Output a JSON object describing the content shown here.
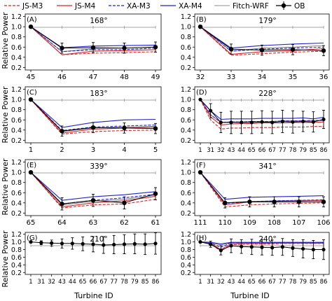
{
  "legend": {
    "entries": [
      {
        "label": "JS-M3",
        "color": "#d62728",
        "dash": "dashed",
        "marker": "none"
      },
      {
        "label": "JS-M4",
        "color": "#d62728",
        "dash": "solid",
        "marker": "none"
      },
      {
        "label": "XA-M3",
        "color": "#2222cc",
        "dash": "dashed",
        "marker": "none"
      },
      {
        "label": "XA-M4",
        "color": "#2222cc",
        "dash": "solid",
        "marker": "none"
      },
      {
        "label": "Fitch-WRF",
        "color": "#666666",
        "dash": "solid",
        "marker": "none"
      },
      {
        "label": "OB",
        "color": "#000000",
        "dash": "solid",
        "marker": "circle"
      }
    ]
  },
  "shared": {
    "ylabel": "Relative Power",
    "xlabel": "Turbine ID",
    "yticks": [
      "0.2",
      "0.4",
      "0.6",
      "0.8",
      "1.0",
      "1.2"
    ]
  },
  "chart_data": [
    {
      "type": "line",
      "letter": "(A)",
      "direction": "168°",
      "ylim": [
        0.15,
        1.25
      ],
      "categories": [
        "45",
        "46",
        "47",
        "48",
        "49"
      ],
      "series": [
        {
          "name": "JS-M3",
          "values": [
            1.0,
            0.45,
            0.48,
            0.49,
            0.51
          ]
        },
        {
          "name": "JS-M4",
          "values": [
            1.0,
            0.45,
            0.52,
            0.53,
            0.55
          ]
        },
        {
          "name": "XA-M3",
          "values": [
            1.0,
            0.51,
            0.55,
            0.55,
            0.58
          ]
        },
        {
          "name": "XA-M4",
          "values": [
            1.0,
            0.59,
            0.62,
            0.63,
            0.64
          ]
        },
        {
          "name": "Fitch-WRF",
          "values": [
            1.0,
            0.51,
            0.57,
            0.58,
            0.6
          ]
        },
        {
          "name": "OB",
          "values": [
            1.0,
            0.58,
            0.59,
            0.58,
            0.6
          ],
          "err": [
            0.0,
            0.1,
            0.1,
            0.1,
            0.1
          ]
        }
      ]
    },
    {
      "type": "line",
      "letter": "(B)",
      "direction": "179°",
      "ylim": [
        0.15,
        1.25
      ],
      "categories": [
        "32",
        "33",
        "34",
        "35",
        "36"
      ],
      "series": [
        {
          "name": "JS-M3",
          "values": [
            1.0,
            0.44,
            0.47,
            0.5,
            0.52
          ]
        },
        {
          "name": "JS-M4",
          "values": [
            1.0,
            0.46,
            0.51,
            0.53,
            0.57
          ]
        },
        {
          "name": "XA-M3",
          "values": [
            1.0,
            0.52,
            0.56,
            0.58,
            0.6
          ]
        },
        {
          "name": "XA-M4",
          "values": [
            1.0,
            0.58,
            0.63,
            0.66,
            0.68
          ]
        },
        {
          "name": "Fitch-WRF",
          "values": [
            1.0,
            0.52,
            0.58,
            0.6,
            0.63
          ]
        },
        {
          "name": "OB",
          "values": [
            1.0,
            0.56,
            0.54,
            0.55,
            0.53
          ],
          "err": [
            0.0,
            0.1,
            0.1,
            0.1,
            0.1
          ]
        }
      ]
    },
    {
      "type": "line",
      "letter": "(C)",
      "direction": "183°",
      "ylim": [
        0.15,
        1.25
      ],
      "categories": [
        "1",
        "2",
        "3",
        "4",
        "5"
      ],
      "series": [
        {
          "name": "JS-M3",
          "values": [
            1.0,
            0.32,
            0.37,
            0.39,
            0.4
          ]
        },
        {
          "name": "JS-M4",
          "values": [
            1.0,
            0.34,
            0.42,
            0.44,
            0.46
          ]
        },
        {
          "name": "XA-M3",
          "values": [
            1.0,
            0.39,
            0.46,
            0.48,
            0.5
          ]
        },
        {
          "name": "XA-M4",
          "values": [
            1.0,
            0.45,
            0.55,
            0.6,
            0.61
          ]
        },
        {
          "name": "Fitch-WRF",
          "values": [
            1.0,
            0.37,
            0.44,
            0.46,
            0.47
          ]
        },
        {
          "name": "OB",
          "values": [
            1.0,
            0.38,
            0.45,
            0.44,
            0.43
          ],
          "err": [
            0.0,
            0.1,
            0.1,
            0.1,
            0.1
          ]
        }
      ]
    },
    {
      "type": "line",
      "letter": "(D)",
      "direction": "228°",
      "ylim": [
        0.15,
        1.25
      ],
      "categories": [
        "1",
        "31",
        "32",
        "43",
        "44",
        "65",
        "66",
        "67",
        "77",
        "78",
        "79",
        "85",
        "86"
      ],
      "series": [
        {
          "name": "JS-M3",
          "values": [
            1.0,
            0.6,
            0.42,
            0.44,
            0.44,
            0.45,
            0.45,
            0.45,
            0.46,
            0.46,
            0.46,
            0.47,
            0.47
          ]
        },
        {
          "name": "JS-M4",
          "values": [
            1.0,
            0.66,
            0.5,
            0.52,
            0.53,
            0.53,
            0.54,
            0.54,
            0.54,
            0.55,
            0.55,
            0.55,
            0.56
          ]
        },
        {
          "name": "XA-M3",
          "values": [
            1.0,
            0.7,
            0.55,
            0.56,
            0.56,
            0.57,
            0.57,
            0.57,
            0.58,
            0.58,
            0.58,
            0.59,
            0.59
          ]
        },
        {
          "name": "XA-M4",
          "values": [
            1.0,
            0.78,
            0.61,
            0.62,
            0.62,
            0.62,
            0.63,
            0.63,
            0.63,
            0.63,
            0.64,
            0.62,
            0.65
          ]
        },
        {
          "name": "Fitch-WRF",
          "values": [
            1.0,
            0.7,
            0.55,
            0.56,
            0.56,
            0.57,
            0.57,
            0.57,
            0.58,
            0.58,
            0.58,
            0.58,
            0.59
          ]
        },
        {
          "name": "OB",
          "values": [
            1.0,
            0.78,
            0.55,
            0.55,
            0.55,
            0.55,
            0.56,
            0.55,
            0.57,
            0.56,
            0.57,
            0.56,
            0.61
          ],
          "err": [
            0.0,
            0.14,
            0.2,
            0.22,
            0.22,
            0.22,
            0.22,
            0.22,
            0.22,
            0.22,
            0.2,
            0.2,
            0.18
          ]
        }
      ]
    },
    {
      "type": "line",
      "letter": "(E)",
      "direction": "339°",
      "ylim": [
        0.15,
        1.25
      ],
      "categories": [
        "65",
        "64",
        "63",
        "62",
        "61"
      ],
      "series": [
        {
          "name": "JS-M3",
          "values": [
            1.0,
            0.3,
            0.36,
            0.38,
            0.47
          ]
        },
        {
          "name": "JS-M4",
          "values": [
            1.0,
            0.32,
            0.4,
            0.44,
            0.53
          ]
        },
        {
          "name": "XA-M3",
          "values": [
            1.0,
            0.38,
            0.45,
            0.5,
            0.57
          ]
        },
        {
          "name": "XA-M4",
          "values": [
            1.0,
            0.45,
            0.52,
            0.56,
            0.62
          ]
        },
        {
          "name": "Fitch-WRF",
          "values": [
            1.0,
            0.36,
            0.43,
            0.47,
            0.55
          ]
        },
        {
          "name": "OB",
          "values": [
            1.0,
            0.38,
            0.45,
            0.4,
            0.58
          ],
          "err": [
            0.0,
            0.12,
            0.12,
            0.12,
            0.12
          ]
        }
      ]
    },
    {
      "type": "line",
      "letter": "(F)",
      "direction": "341°",
      "ylim": [
        0.15,
        1.25
      ],
      "categories": [
        "111",
        "110",
        "109",
        "108",
        "107",
        "106"
      ],
      "series": [
        {
          "name": "JS-M3",
          "values": [
            1.0,
            0.32,
            0.36,
            0.38,
            0.39,
            0.4
          ]
        },
        {
          "name": "JS-M4",
          "values": [
            1.0,
            0.36,
            0.42,
            0.43,
            0.44,
            0.45
          ]
        },
        {
          "name": "XA-M3",
          "values": [
            1.0,
            0.39,
            0.42,
            0.44,
            0.45,
            0.46
          ]
        },
        {
          "name": "XA-M4",
          "values": [
            1.0,
            0.47,
            0.51,
            0.52,
            0.53,
            0.54
          ]
        },
        {
          "name": "Fitch-WRF",
          "values": [
            1.0,
            0.4,
            0.43,
            0.44,
            0.45,
            0.45
          ]
        },
        {
          "name": "OB",
          "values": [
            1.0,
            0.4,
            0.42,
            0.42,
            0.42,
            0.42
          ],
          "err": [
            0.0,
            0.1,
            0.1,
            0.1,
            0.1,
            0.1
          ]
        }
      ]
    },
    {
      "type": "line",
      "letter": "(G)",
      "direction": "210°",
      "ylim": [
        0.15,
        1.25
      ],
      "categories": [
        "1",
        "31",
        "32",
        "43",
        "44",
        "65",
        "66",
        "67",
        "77",
        "78",
        "79",
        "85",
        "86"
      ],
      "series": [
        {
          "name": "OB",
          "values": [
            1.0,
            0.98,
            0.97,
            0.96,
            0.96,
            0.95,
            0.94,
            0.92,
            0.93,
            0.94,
            0.95,
            0.94,
            0.96
          ],
          "err": [
            0.02,
            0.05,
            0.08,
            0.12,
            0.15,
            0.18,
            0.2,
            0.22,
            0.24,
            0.25,
            0.26,
            0.27,
            0.28
          ]
        }
      ]
    },
    {
      "type": "line",
      "letter": "(H)",
      "direction": "240°",
      "ylim": [
        0.15,
        1.25
      ],
      "categories": [
        "1",
        "31",
        "32",
        "43",
        "44",
        "65",
        "66",
        "67",
        "77",
        "78",
        "79",
        "85",
        "86"
      ],
      "series": [
        {
          "name": "JS-M3",
          "values": [
            1.0,
            0.95,
            0.76,
            0.93,
            0.94,
            0.95,
            0.95,
            0.95,
            0.96,
            0.96,
            0.96,
            0.96,
            0.96
          ]
        },
        {
          "name": "JS-M4",
          "values": [
            1.0,
            0.96,
            0.8,
            0.95,
            0.96,
            0.96,
            0.96,
            0.97,
            0.97,
            0.97,
            0.97,
            0.97,
            0.97
          ]
        },
        {
          "name": "XA-M3",
          "values": [
            1.0,
            0.97,
            0.86,
            0.98,
            0.98,
            0.98,
            0.98,
            0.98,
            0.98,
            0.98,
            0.98,
            0.98,
            0.98
          ]
        },
        {
          "name": "XA-M4",
          "values": [
            1.0,
            0.99,
            0.95,
            0.99,
            0.99,
            0.99,
            0.99,
            0.99,
            0.99,
            0.99,
            0.99,
            0.99,
            0.99
          ]
        },
        {
          "name": "Fitch-WRF",
          "values": [
            1.0,
            0.98,
            0.92,
            0.98,
            0.98,
            0.98,
            0.98,
            0.98,
            0.98,
            0.98,
            0.98,
            0.98,
            0.98
          ]
        },
        {
          "name": "OB",
          "values": [
            1.0,
            0.94,
            0.78,
            0.9,
            0.88,
            0.87,
            0.86,
            0.85,
            0.87,
            0.84,
            0.82,
            0.8,
            0.8
          ],
          "err": [
            0.02,
            0.08,
            0.12,
            0.18,
            0.18,
            0.2,
            0.2,
            0.2,
            0.22,
            0.22,
            0.24,
            0.24,
            0.26
          ]
        }
      ]
    }
  ]
}
